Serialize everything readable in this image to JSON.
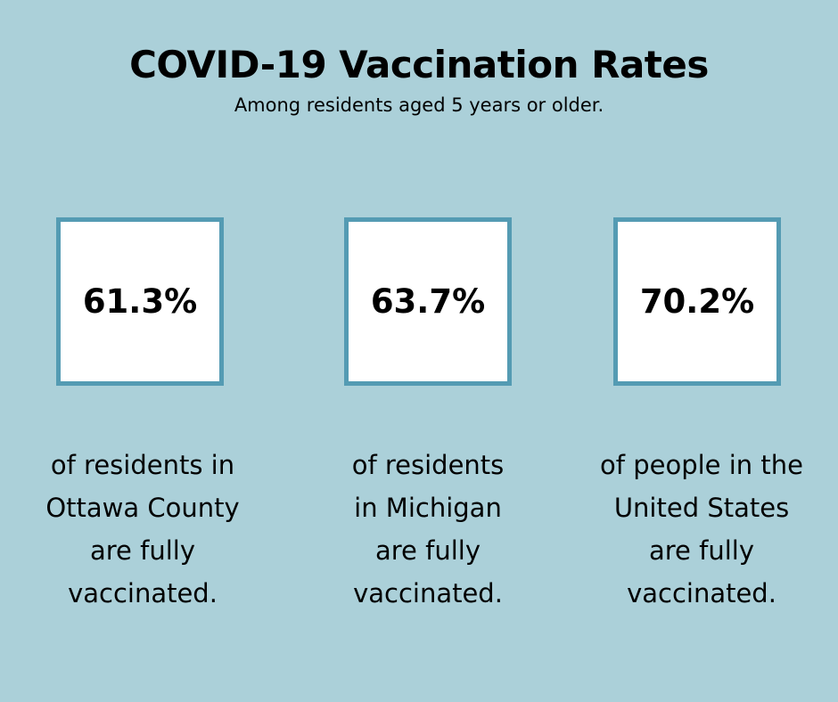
{
  "title": "COVID-19 Vaccination Rates",
  "subtitle": "Among residents aged 5 years or older.",
  "colors": {
    "background": "#abd0d9",
    "box_border": "#549bb3",
    "box_fill": "#ffffff"
  },
  "stats": [
    {
      "value": "61.3%",
      "lines": [
        "of residents in",
        "Ottawa County",
        "are fully",
        "vaccinated."
      ]
    },
    {
      "value": "63.7%",
      "lines": [
        "of residents",
        "in Michigan",
        "are fully",
        "vaccinated."
      ]
    },
    {
      "value": "70.2%",
      "lines": [
        "of people in the",
        "United States",
        "are fully",
        "vaccinated."
      ]
    }
  ]
}
